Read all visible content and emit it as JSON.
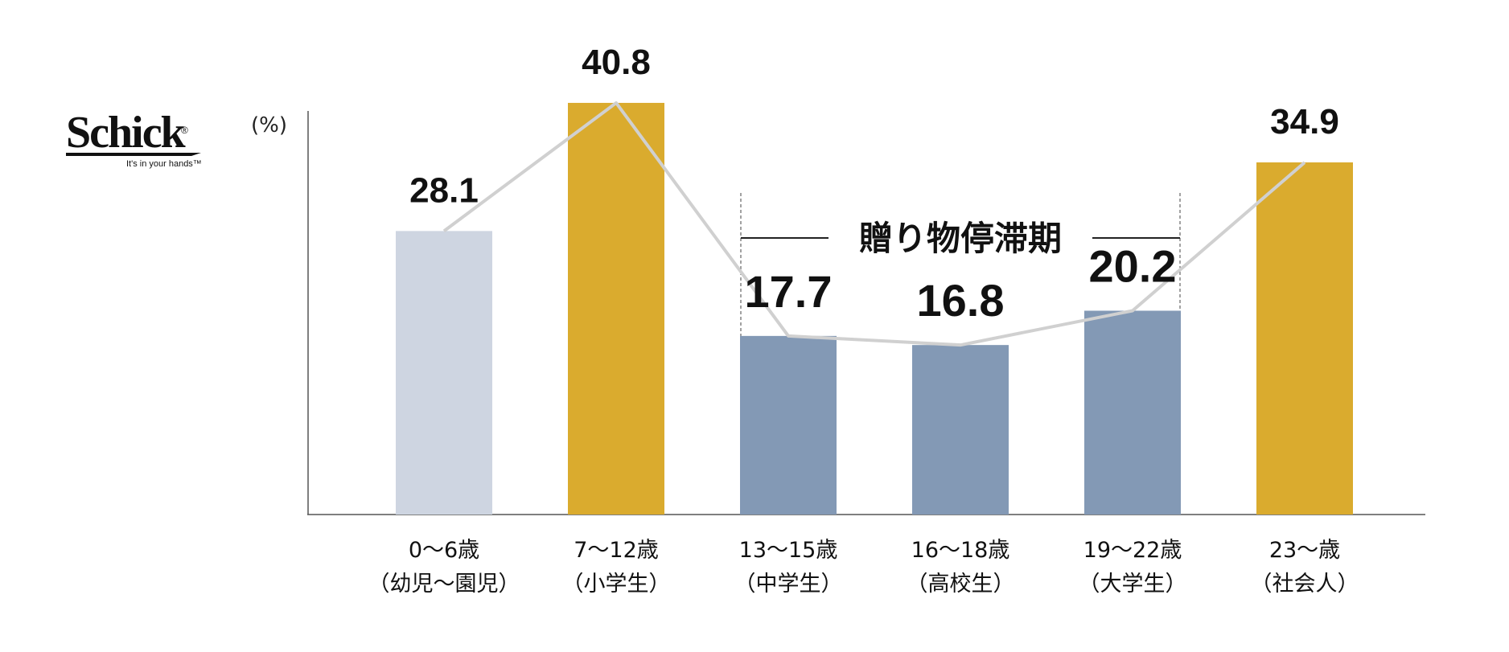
{
  "brand": {
    "logo_text": "Schick",
    "registered": "®",
    "tagline": "It's in your hands™"
  },
  "chart_data": {
    "type": "bar",
    "unit_label": "(%)",
    "categories": [
      [
        "0～6歳",
        "（幼児～園児）"
      ],
      [
        "7～12歳",
        "（小学生）"
      ],
      [
        "13～15歳",
        "（中学生）"
      ],
      [
        "16～18歳",
        "（高校生）"
      ],
      [
        "19～22歳",
        "（大学生）"
      ],
      [
        "23～歳",
        "（社会人）"
      ]
    ],
    "values": [
      28.1,
      40.8,
      17.7,
      16.8,
      20.2,
      34.9
    ],
    "value_labels": [
      "28.1",
      "40.8",
      "17.7",
      "16.8",
      "20.2",
      "34.9"
    ],
    "bar_colors": [
      "#CED5E1",
      "#DAAB2E",
      "#8399B5",
      "#8399B5",
      "#8399B5",
      "#DAAB2E"
    ],
    "trend_line": {
      "present": true,
      "color": "#D0D0D0"
    },
    "annotation": {
      "text": "贈り物停滞期",
      "spans_categories": [
        2,
        4
      ]
    },
    "ylim": [
      0,
      50
    ],
    "grid": false,
    "legend": "none"
  }
}
